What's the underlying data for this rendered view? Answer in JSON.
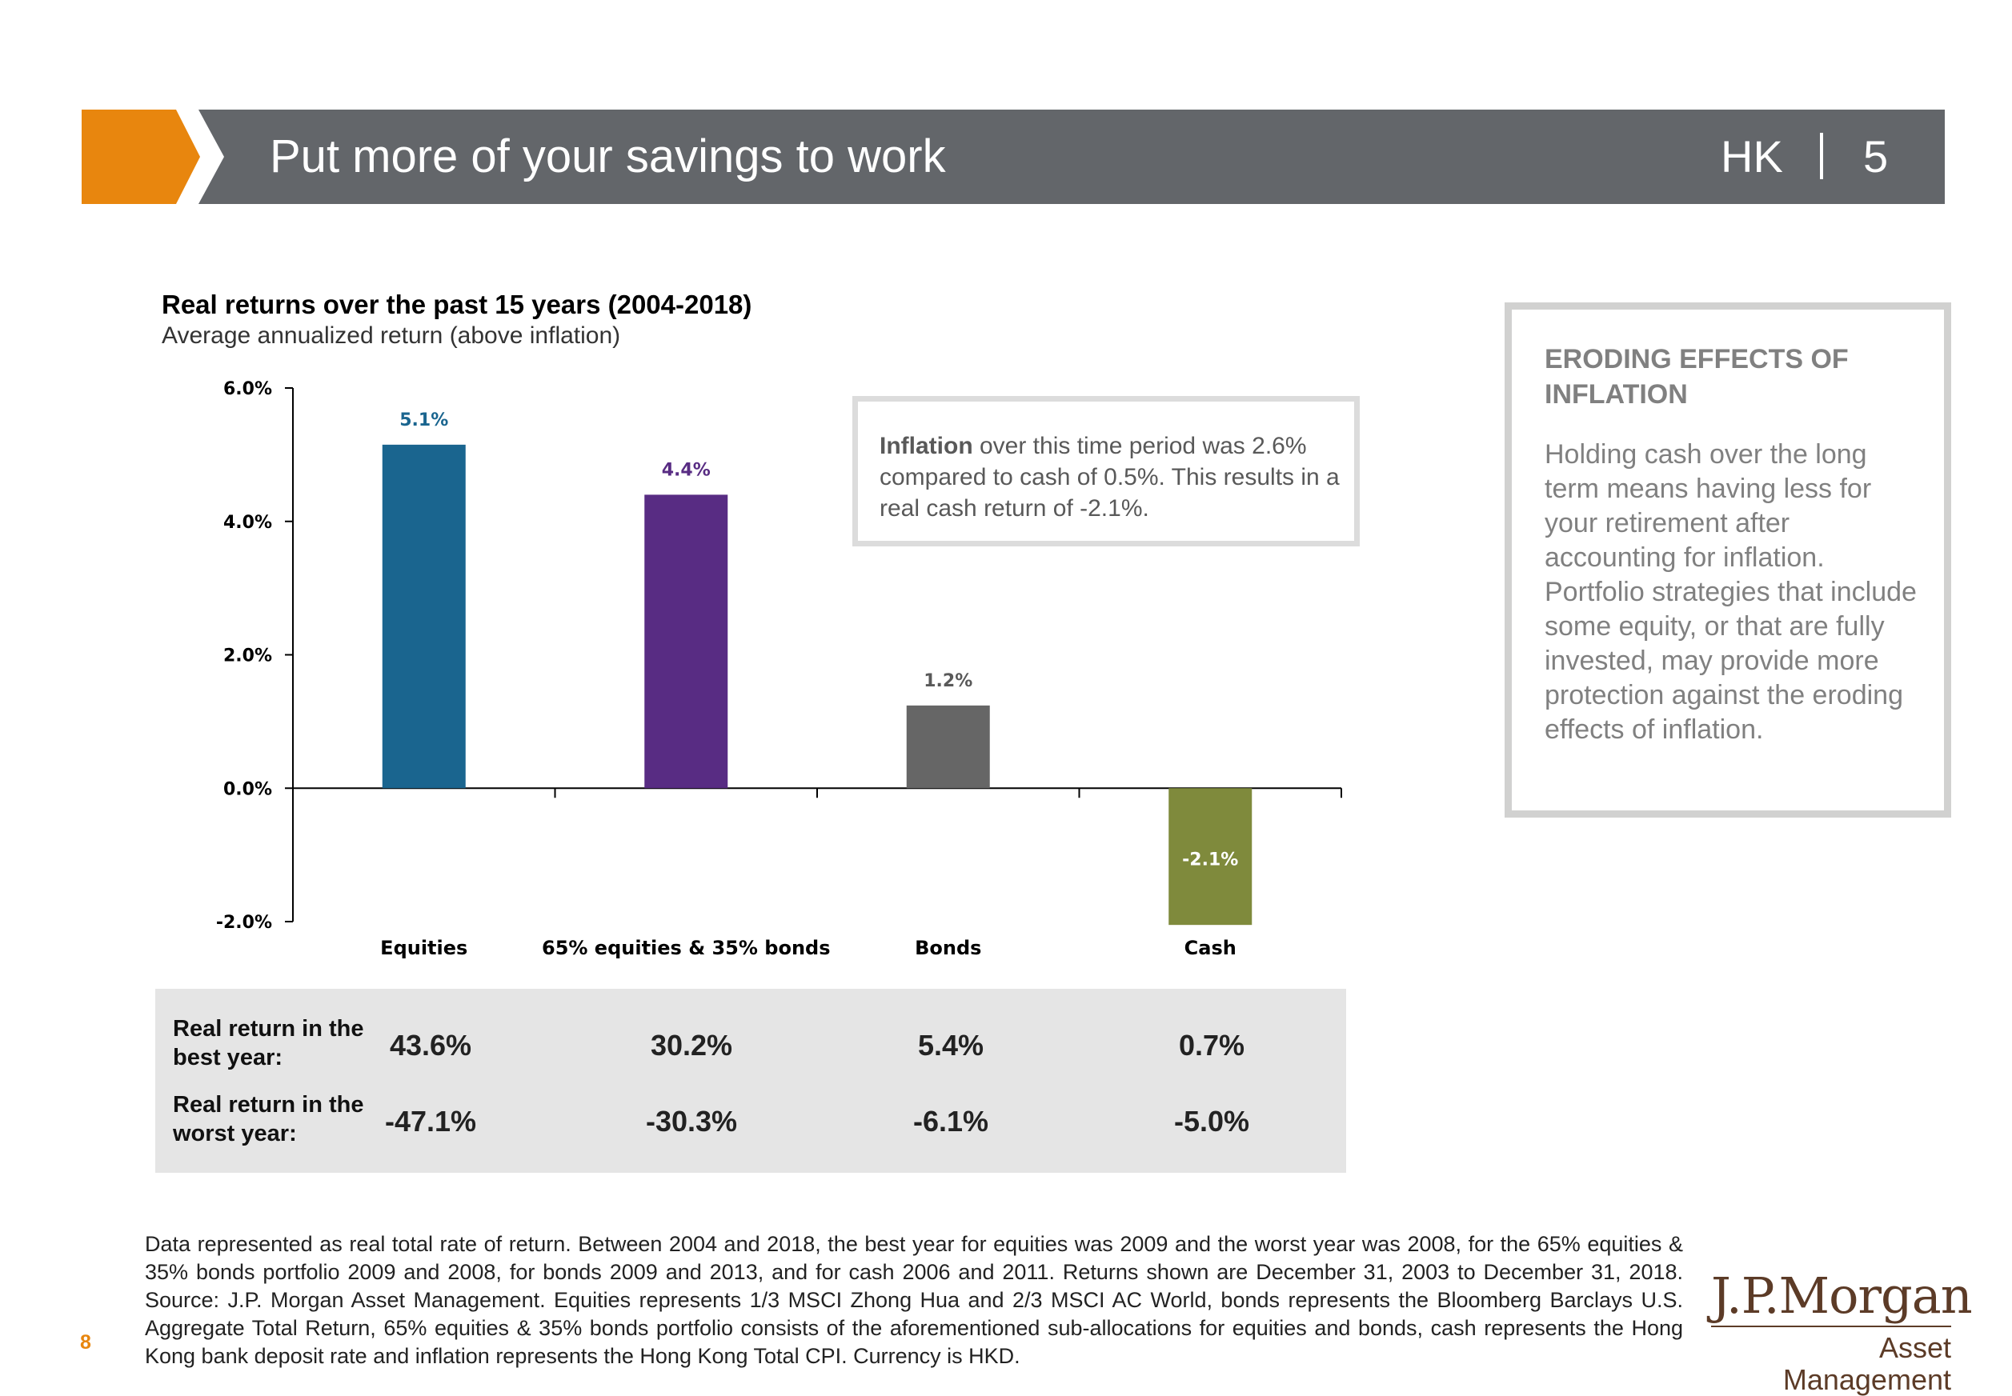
{
  "header": {
    "title": "Put more of your savings to work",
    "region": "HK",
    "page": "5"
  },
  "colors": {
    "accent_orange": "#e8860e",
    "header_gray": "#63666a",
    "equities": "#1a658f",
    "balanced": "#582c83",
    "bonds": "#666666",
    "cash": "#7f8a3c",
    "logo_brown": "#5c3b27"
  },
  "chart_data": {
    "type": "bar",
    "title": "Real returns over the past 15 years (2004-2018)",
    "subtitle": "Average annualized return (above inflation)",
    "categories": [
      "Equities",
      "65% equities & 35% bonds",
      "Bonds",
      "Cash"
    ],
    "values": [
      5.15,
      4.4,
      1.24,
      -2.05
    ],
    "value_labels": [
      "5.1%",
      "4.4%",
      "1.2%",
      "-2.1%"
    ],
    "bar_colors": [
      "#1a658f",
      "#582c83",
      "#666666",
      "#7f8a3c"
    ],
    "label_colors": [
      "#1a658f",
      "#582c83",
      "#595959",
      "#ffffff"
    ],
    "ylim": [
      -2.0,
      6.0
    ],
    "yticks": [
      -2.0,
      0.0,
      2.0,
      4.0,
      6.0
    ],
    "ytick_labels": [
      "-2.0%",
      "0.0%",
      "2.0%",
      "4.0%",
      "6.0%"
    ],
    "grid": false,
    "legend": "none"
  },
  "note": {
    "bold": "Inflation",
    "text": " over this time period was 2.6% compared to cash of 0.5%. This results in a real cash return of -2.1%."
  },
  "sidebar": {
    "heading": "ERODING EFFECTS OF INFLATION",
    "body": "Holding cash over the long term means having less for your retirement after accounting for inflation. Portfolio strategies that include some equity, or that are fully invested, may provide more protection against the eroding effects of inflation."
  },
  "table": {
    "best_label": "Real return in the best year:",
    "worst_label": "Real return in the worst year:",
    "best": [
      "43.6%",
      "30.2%",
      "5.4%",
      "0.7%"
    ],
    "worst": [
      "-47.1%",
      "-30.3%",
      "-6.1%",
      "-5.0%"
    ]
  },
  "footnote": "Data represented as real total rate of return. Between 2004 and 2018, the best year for equities was 2009 and the worst year was 2008, for the 65% equities & 35% bonds portfolio 2009 and 2008, for bonds 2009 and 2013, and for cash 2006 and 2011. Returns shown are December 31, 2003 to December 31, 2018. Source: J.P. Morgan Asset Management. Equities represents 1/3 MSCI Zhong Hua and 2/3 MSCI AC World, bonds represents the Bloomberg Barclays U.S. Aggregate Total Return, 65% equities & 35% bonds portfolio consists of the aforementioned sub-allocations for equities and bonds, cash represents the Hong Kong bank deposit rate and inflation represents the Hong Kong Total CPI. Currency is HKD.",
  "page_number": "8",
  "logo": {
    "name": "J.P.Morgan",
    "sub": "Asset Management"
  }
}
